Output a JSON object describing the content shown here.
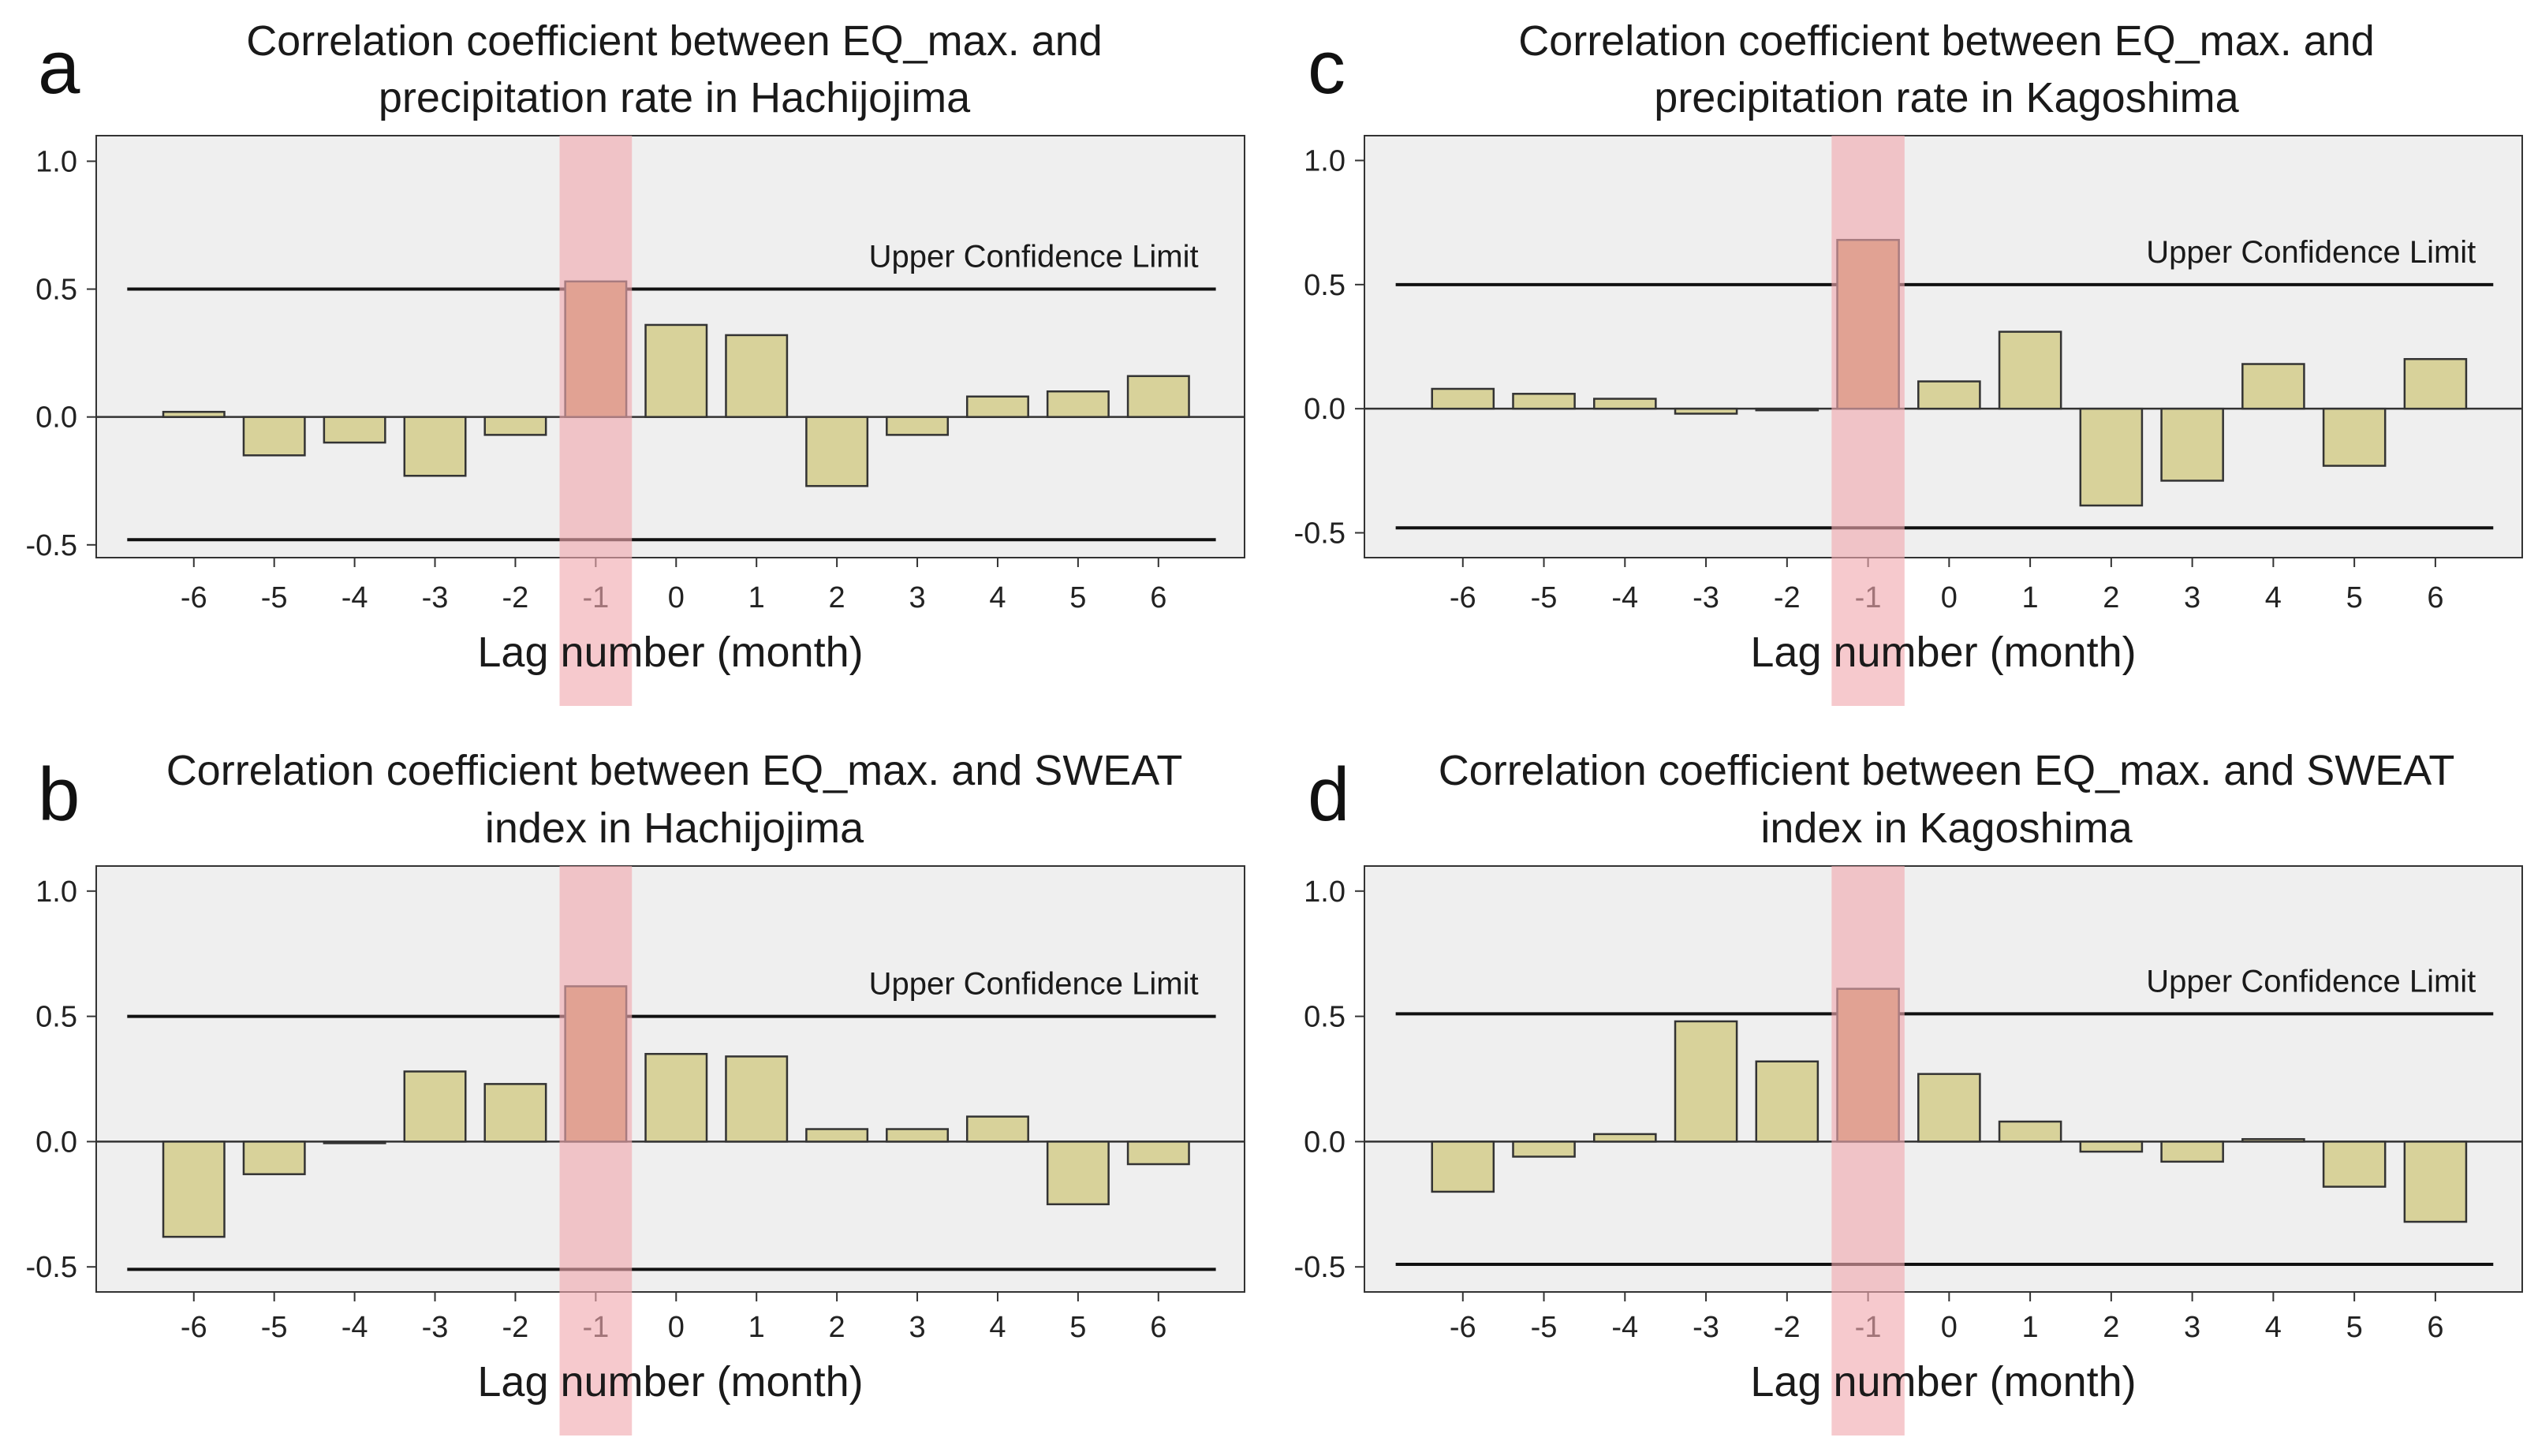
{
  "figure": {
    "panels": [
      {
        "letter": "a",
        "title_lines": [
          "Correlation coefficient between EQ_max. and",
          "precipitation rate in Hachijojima"
        ]
      },
      {
        "letter": "b",
        "title_lines": [
          "Correlation coefficient between EQ_max. and SWEAT",
          "index in Hachijojima"
        ]
      },
      {
        "letter": "c",
        "title_lines": [
          "Correlation coefficient between EQ_max. and",
          "precipitation rate in Kagoshima"
        ]
      },
      {
        "letter": "d",
        "title_lines": [
          "Correlation coefficient between EQ_max. and SWEAT",
          "index in Kagoshima"
        ]
      }
    ]
  },
  "colors": {
    "bar_fill": "#d8d29a",
    "highlight_bar_fill": "#c89a68",
    "highlight_band": "#f0a8ae",
    "plot_bg": "#efefef",
    "axis": "#333333"
  },
  "chart_data": [
    {
      "type": "bar",
      "panel": "a",
      "title": "Correlation coefficient between EQ_max. and precipitation rate in Hachijojima",
      "xlabel": "Lag number (month)",
      "ylabel": "",
      "categories": [
        "-6",
        "-5",
        "-4",
        "-3",
        "-2",
        "-1",
        "0",
        "1",
        "2",
        "3",
        "4",
        "5",
        "6"
      ],
      "values": [
        0.02,
        -0.15,
        -0.1,
        -0.23,
        -0.07,
        0.53,
        0.36,
        0.32,
        -0.27,
        -0.07,
        0.08,
        0.1,
        0.16
      ],
      "yticks": [
        "-0.5",
        "0.0",
        "0.5",
        "1.0"
      ],
      "ylim": [
        -0.55,
        1.1
      ],
      "upper_confidence_limit": 0.5,
      "lower_confidence_limit": -0.48,
      "ucl_label": "Upper Confidence Limit",
      "highlight_category": "-1"
    },
    {
      "type": "bar",
      "panel": "b",
      "title": "Correlation coefficient between EQ_max. and SWEAT index in Hachijojima",
      "xlabel": "Lag number (month)",
      "ylabel": "",
      "categories": [
        "-6",
        "-5",
        "-4",
        "-3",
        "-2",
        "-1",
        "0",
        "1",
        "2",
        "3",
        "4",
        "5",
        "6"
      ],
      "values": [
        -0.38,
        -0.13,
        0.0,
        0.28,
        0.23,
        0.62,
        0.35,
        0.34,
        0.05,
        0.05,
        0.1,
        -0.25,
        -0.09
      ],
      "yticks": [
        "-0.5",
        "0.0",
        "0.5",
        "1.0"
      ],
      "ylim": [
        -0.6,
        1.1
      ],
      "upper_confidence_limit": 0.5,
      "lower_confidence_limit": -0.51,
      "ucl_label": "Upper Confidence Limit",
      "highlight_category": "-1"
    },
    {
      "type": "bar",
      "panel": "c",
      "title": "Correlation coefficient between EQ_max. and precipitation rate in Kagoshima",
      "xlabel": "Lag number (month)",
      "ylabel": "",
      "categories": [
        "-6",
        "-5",
        "-4",
        "-3",
        "-2",
        "-1",
        "0",
        "1",
        "2",
        "3",
        "4",
        "5",
        "6"
      ],
      "values": [
        0.08,
        0.06,
        0.04,
        -0.02,
        0.0,
        0.68,
        0.11,
        0.31,
        -0.39,
        -0.29,
        0.18,
        -0.23,
        0.2
      ],
      "yticks": [
        "-0.5",
        "0.0",
        "0.5",
        "1.0"
      ],
      "ylim": [
        -0.6,
        1.1
      ],
      "upper_confidence_limit": 0.5,
      "lower_confidence_limit": -0.48,
      "ucl_label": "Upper Confidence Limit",
      "highlight_category": "-1"
    },
    {
      "type": "bar",
      "panel": "d",
      "title": "Correlation coefficient between EQ_max. and SWEAT index in Kagoshima",
      "xlabel": "Lag number (month)",
      "ylabel": "",
      "categories": [
        "-6",
        "-5",
        "-4",
        "-3",
        "-2",
        "-1",
        "0",
        "1",
        "2",
        "3",
        "4",
        "5",
        "6"
      ],
      "values": [
        -0.2,
        -0.06,
        0.03,
        0.48,
        0.32,
        0.61,
        0.27,
        0.08,
        -0.04,
        -0.08,
        0.01,
        -0.18,
        -0.32
      ],
      "yticks": [
        "-0.5",
        "0.0",
        "0.5",
        "1.0"
      ],
      "ylim": [
        -0.6,
        1.1
      ],
      "upper_confidence_limit": 0.51,
      "lower_confidence_limit": -0.49,
      "ucl_label": "Upper Confidence Limit",
      "highlight_category": "-1"
    }
  ]
}
